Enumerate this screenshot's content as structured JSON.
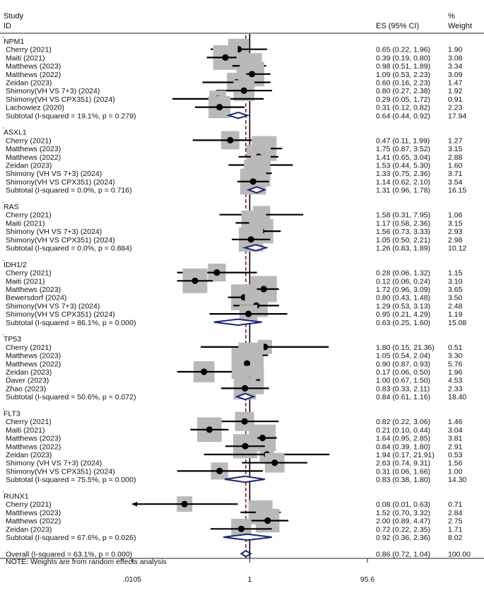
{
  "chart_data": {
    "type": "forest",
    "header": {
      "study_line1": "Study",
      "study_line2": "ID",
      "es_label": "ES (95% CI)",
      "weight_line1": "%",
      "weight_line2": "Weight"
    },
    "x_axis": {
      "scale": "log",
      "range": [
        0.0105,
        95.6
      ],
      "tick_values": [
        0.0105,
        1,
        95.6
      ],
      "tick_labels": [
        ".0105",
        "1",
        "95.6"
      ]
    },
    "overall_es": 0.86,
    "groups": [
      {
        "name": "NPM1",
        "studies": [
          {
            "label": "Cherry (2021)",
            "es": 0.65,
            "lo": 0.22,
            "hi": 1.96,
            "ci_text": "0.65 (0.22, 1.96)",
            "weight": "1.90"
          },
          {
            "label": "Maiti (2021)",
            "es": 0.39,
            "lo": 0.19,
            "hi": 0.8,
            "ci_text": "0.39 (0.19, 0.80)",
            "weight": "3.08"
          },
          {
            "label": "Matthews (2023)",
            "es": 0.98,
            "lo": 0.51,
            "hi": 1.89,
            "ci_text": "0.98 (0.51, 1.89)",
            "weight": "3.34"
          },
          {
            "label": "Matthews (2022)",
            "es": 1.09,
            "lo": 0.53,
            "hi": 2.23,
            "ci_text": "1.09 (0.53, 2.23)",
            "weight": "3.09"
          },
          {
            "label": "Zeidan (2023)",
            "es": 0.6,
            "lo": 0.16,
            "hi": 2.23,
            "ci_text": "0.60 (0.16, 2.23)",
            "weight": "1.47"
          },
          {
            "label": "Shimony(VH VS 7+3) (2024)",
            "es": 0.8,
            "lo": 0.27,
            "hi": 2.38,
            "ci_text": "0.80 (0.27, 2.38)",
            "weight": "1.92"
          },
          {
            "label": "Shimony(VH VS CPX351) (2024)",
            "es": 0.29,
            "lo": 0.05,
            "hi": 1.72,
            "ci_text": "0.29 (0.05, 1.72)",
            "weight": "0.91"
          },
          {
            "label": "Lachowiez (2020)",
            "es": 0.31,
            "lo": 0.12,
            "hi": 0.82,
            "ci_text": "0.31 (0.12, 0.82)",
            "weight": "2.23"
          }
        ],
        "subtotal": {
          "label": "Subtotal  (I-squared = 19.1%, p = 0.279)",
          "es": 0.64,
          "lo": 0.44,
          "hi": 0.92,
          "ci_text": "0.64 (0.44, 0.92)",
          "weight": "17.94"
        }
      },
      {
        "name": "ASXL1",
        "studies": [
          {
            "label": "Cherry (2021)",
            "es": 0.47,
            "lo": 0.11,
            "hi": 1.99,
            "ci_text": "0.47 (0.11, 1.99)",
            "weight": "1.27"
          },
          {
            "label": "Matthews (2023)",
            "es": 1.75,
            "lo": 0.87,
            "hi": 3.52,
            "ci_text": "1.75 (0.87, 3.52)",
            "weight": "3.15"
          },
          {
            "label": "Matthews (2022)",
            "es": 1.41,
            "lo": 0.65,
            "hi": 3.04,
            "ci_text": "1.41 (0.65, 3.04)",
            "weight": "2.88"
          },
          {
            "label": "Zeidan (2023)",
            "es": 1.53,
            "lo": 0.44,
            "hi": 5.3,
            "ci_text": "1.53 (0.44, 5.30)",
            "weight": "1.60"
          },
          {
            "label": "Shimony  (VH VS 7+3) (2024)",
            "es": 1.33,
            "lo": 0.75,
            "hi": 2.36,
            "ci_text": "1.33 (0.75, 2.36)",
            "weight": "3.71"
          },
          {
            "label": "Shimony(VH VS CPX351) (2024)",
            "es": 1.14,
            "lo": 0.62,
            "hi": 2.1,
            "ci_text": "1.14 (0.62, 2.10)",
            "weight": "3.54"
          }
        ],
        "subtotal": {
          "label": "Subtotal  (I-squared = 0.0%, p = 0.716)",
          "es": 1.31,
          "lo": 0.96,
          "hi": 1.78,
          "ci_text": "1.31 (0.96, 1.78)",
          "weight": "16.15"
        }
      },
      {
        "name": "RAS",
        "studies": [
          {
            "label": "Cherry (2021)",
            "es": 1.58,
            "lo": 0.31,
            "hi": 7.95,
            "ci_text": "1.58 (0.31, 7.95)",
            "weight": "1.06"
          },
          {
            "label": "Maiti (2021)",
            "es": 1.17,
            "lo": 0.58,
            "hi": 2.36,
            "ci_text": "1.17 (0.58, 2.36)",
            "weight": "3.15"
          },
          {
            "label": "Shimony (VH VS 7+3) (2024)",
            "es": 1.56,
            "lo": 0.73,
            "hi": 3.33,
            "ci_text": "1.56 (0.73, 3.33)",
            "weight": "2.93"
          },
          {
            "label": "Shimony(VH VS CPX351) (2024)",
            "es": 1.05,
            "lo": 0.5,
            "hi": 2.21,
            "ci_text": "1.05 (0.50, 2.21)",
            "weight": "2.98"
          }
        ],
        "subtotal": {
          "label": "Subtotal  (I-squared = 0.0%, p = 0.884)",
          "es": 1.26,
          "lo": 0.83,
          "hi": 1.89,
          "ci_text": "1.26 (0.83, 1.89)",
          "weight": "10.12"
        }
      },
      {
        "name": "IDH1/2",
        "studies": [
          {
            "label": "Cherry (2021)",
            "es": 0.28,
            "lo": 0.06,
            "hi": 1.32,
            "ci_text": "0.28 (0.06, 1.32)",
            "weight": "1.15"
          },
          {
            "label": "Maiti (2021)",
            "es": 0.12,
            "lo": 0.06,
            "hi": 0.24,
            "ci_text": "0.12 (0.06, 0.24)",
            "weight": "3.10"
          },
          {
            "label": "Matthews (2023)",
            "es": 1.72,
            "lo": 0.96,
            "hi": 3.09,
            "ci_text": "1.72 (0.96, 3.09)",
            "weight": "3.65"
          },
          {
            "label": "Bewersdorf (2024)",
            "es": 0.8,
            "lo": 0.43,
            "hi": 1.48,
            "ci_text": "0.80 (0.43, 1.48)",
            "weight": "3.50"
          },
          {
            "label": "Shimony(VH VS 7+3) (2024)",
            "es": 1.29,
            "lo": 0.53,
            "hi": 3.13,
            "ci_text": "1.29 (0.53, 3.13)",
            "weight": "2.48"
          },
          {
            "label": "Shimony(VH VS CPX351) (2024)",
            "es": 0.95,
            "lo": 0.21,
            "hi": 4.29,
            "ci_text": "0.95 (0.21, 4.29)",
            "weight": "1.19"
          }
        ],
        "subtotal": {
          "label": "Subtotal  (I-squared = 86.1%, p = 0.000)",
          "es": 0.63,
          "lo": 0.25,
          "hi": 1.6,
          "ci_text": "0.63 (0.25, 1.60)",
          "weight": "15.08"
        }
      },
      {
        "name": "TP53",
        "studies": [
          {
            "label": "Cherry (2021)",
            "es": 1.8,
            "lo": 0.15,
            "hi": 21.36,
            "ci_text": "1.80 (0.15, 21.36)",
            "weight": "0.51"
          },
          {
            "label": "Matthews (2023)",
            "es": 1.05,
            "lo": 0.54,
            "hi": 2.04,
            "ci_text": "1.05 (0.54, 2.04)",
            "weight": "3.30"
          },
          {
            "label": "Matthews (2022)",
            "es": 0.9,
            "lo": 0.87,
            "hi": 0.93,
            "ci_text": "0.90 (0.87, 0.93)",
            "weight": "5.76"
          },
          {
            "label": "Zeidan (2023)",
            "es": 0.17,
            "lo": 0.06,
            "hi": 0.5,
            "ci_text": "0.17 (0.06, 0.50)",
            "weight": "1.96"
          },
          {
            "label": "Daver (2023)",
            "es": 1.0,
            "lo": 0.67,
            "hi": 1.5,
            "ci_text": "1.00 (0.67, 1.50)",
            "weight": "4.53"
          },
          {
            "label": "Zhao (2023)",
            "es": 0.83,
            "lo": 0.33,
            "hi": 2.11,
            "ci_text": "0.83 (0.33, 2.11)",
            "weight": "2.33"
          }
        ],
        "subtotal": {
          "label": "Subtotal  (I-squared = 50.6%, p = 0.072)",
          "es": 0.84,
          "lo": 0.61,
          "hi": 1.16,
          "ci_text": "0.84 (0.61, 1.16)",
          "weight": "18.40"
        }
      },
      {
        "name": "FLT3",
        "studies": [
          {
            "label": "Cherry (2021)",
            "es": 0.82,
            "lo": 0.22,
            "hi": 3.06,
            "ci_text": "0.82 (0.22, 3.06)",
            "weight": "1.46"
          },
          {
            "label": "Maiti (2021)",
            "es": 0.21,
            "lo": 0.1,
            "hi": 0.44,
            "ci_text": "0.21 (0.10, 0.44)",
            "weight": "3.04"
          },
          {
            "label": "Matthews (2023)",
            "es": 1.64,
            "lo": 0.95,
            "hi": 2.85,
            "ci_text": "1.64 (0.95, 2.85)",
            "weight": "3.81"
          },
          {
            "label": "Matthews (2022)",
            "es": 0.84,
            "lo": 0.39,
            "hi": 1.8,
            "ci_text": "0.84 (0.39, 1.80)",
            "weight": "2.91"
          },
          {
            "label": "Zeidan (2023)",
            "es": 1.94,
            "lo": 0.17,
            "hi": 21.91,
            "ci_text": "1.94 (0.17, 21.91)",
            "weight": "0.53"
          },
          {
            "label": "Shimony  (VH VS 7+3) (2024)",
            "es": 2.63,
            "lo": 0.74,
            "hi": 9.31,
            "ci_text": "2.63 (0.74, 9.31)",
            "weight": "1.56"
          },
          {
            "label": "Shimony(VH VS CPX351) (2024)",
            "es": 0.31,
            "lo": 0.06,
            "hi": 1.66,
            "ci_text": "0.31 (0.06, 1.66)",
            "weight": "1.00"
          }
        ],
        "subtotal": {
          "label": "Subtotal  (I-squared = 75.5%, p = 0.000)",
          "es": 0.83,
          "lo": 0.38,
          "hi": 1.8,
          "ci_text": "0.83 (0.38, 1.80)",
          "weight": "14.30"
        }
      },
      {
        "name": "RUNX1",
        "studies": [
          {
            "label": "Cherry (2021)",
            "es": 0.08,
            "lo": 0.01,
            "hi": 0.63,
            "ci_text": "0.08 (0.01, 0.63)",
            "weight": "0.71"
          },
          {
            "label": "Matthews (2023)",
            "es": 1.52,
            "lo": 0.7,
            "hi": 3.32,
            "ci_text": "1.52 (0.70, 3.32)",
            "weight": "2.84"
          },
          {
            "label": "Matthews (2022)",
            "es": 2.0,
            "lo": 0.89,
            "hi": 4.47,
            "ci_text": "2.00 (0.89, 4.47)",
            "weight": "2.75"
          },
          {
            "label": "Zeidan (2023)",
            "es": 0.72,
            "lo": 0.22,
            "hi": 2.35,
            "ci_text": "0.72 (0.22, 2.35)",
            "weight": "1.71"
          }
        ],
        "subtotal": {
          "label": "Subtotal  (I-squared = 67.6%, p = 0.026)",
          "es": 0.92,
          "lo": 0.36,
          "hi": 2.36,
          "ci_text": "0.92 (0.36, 2.36)",
          "weight": "8.02"
        }
      }
    ],
    "overall": {
      "label": "Overall  (I-squared = 63.1%, p = 0.000)",
      "es": 0.86,
      "lo": 0.72,
      "hi": 1.04,
      "ci_text": "0.86 (0.72, 1.04)",
      "weight": "100.00"
    },
    "note": "NOTE: Weights are from random effects analysis",
    "colors": {
      "weight_box": "#b9b9b9",
      "point": "#000000",
      "diamond": "#1a237e",
      "overall_line": "#8b1a1a",
      "null_line": "#000000"
    }
  }
}
